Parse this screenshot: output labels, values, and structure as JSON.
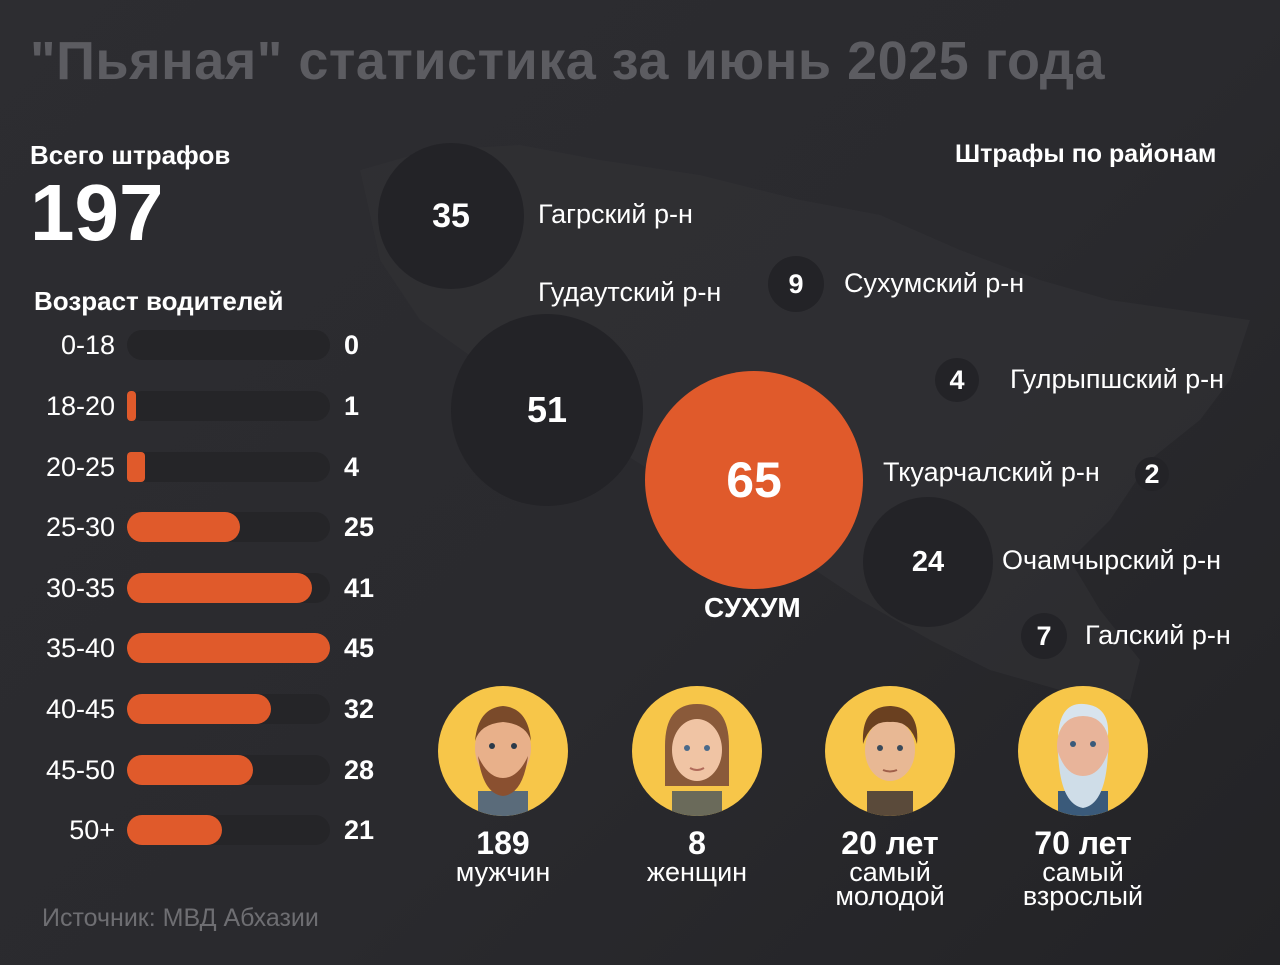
{
  "title": "\"Пьяная\" статистика за июнь 2025 года",
  "total": {
    "label": "Всего штрафов",
    "value": "197"
  },
  "age": {
    "title": "Возраст водителей",
    "bars": [
      {
        "label": "0-18",
        "value": 0
      },
      {
        "label": "18-20",
        "value": 1
      },
      {
        "label": "20-25",
        "value": 4
      },
      {
        "label": "25-30",
        "value": 25
      },
      {
        "label": "30-35",
        "value": 41
      },
      {
        "label": "35-40",
        "value": 45
      },
      {
        "label": "40-45",
        "value": 32
      },
      {
        "label": "45-50",
        "value": 28
      },
      {
        "label": "50+",
        "value": 21
      }
    ],
    "max": 45
  },
  "districts": {
    "title": "Штрафы по районам",
    "gagra": {
      "name": "Гагрский р-н",
      "value": "35"
    },
    "gudauta": {
      "name": "Гудаутский р-н",
      "value": "51"
    },
    "sukhumi_district": {
      "name": "Сухумский р-н",
      "value": "9"
    },
    "gulripsh": {
      "name": "Гулрыпшский р-н",
      "value": "4"
    },
    "sukhum": {
      "name": "СУХУМ",
      "value": "65"
    },
    "tkuarchal": {
      "name": "Ткуарчалский р-н",
      "value": "2"
    },
    "ochamchira": {
      "name": "Очамчырский р-н",
      "value": "24"
    },
    "gal": {
      "name": "Галский р-н",
      "value": "7"
    }
  },
  "people": [
    {
      "value": "189",
      "label": "мужчин",
      "icon": "man-avatar-icon"
    },
    {
      "value": "8",
      "label": "женщин",
      "icon": "woman-avatar-icon"
    },
    {
      "value": "20 лет",
      "label": "самый молодой",
      "icon": "young-man-avatar-icon"
    },
    {
      "value": "70 лет",
      "label": "самый взрослый",
      "icon": "old-man-avatar-icon"
    }
  ],
  "source": "Источник: МВД Абхазии",
  "colors": {
    "accent": "#e05a2b",
    "avatar_bg": "#f7c649",
    "bubble": "#232327"
  }
}
